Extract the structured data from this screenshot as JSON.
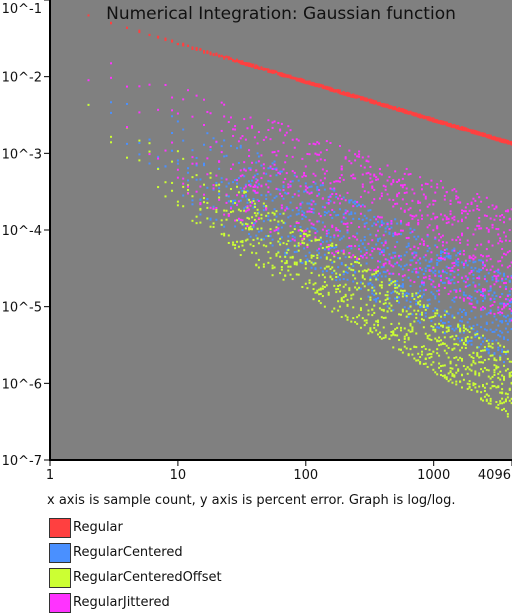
{
  "chart_data": {
    "type": "scatter",
    "title": "Numerical Integration: Gaussian function",
    "xscale": "log",
    "yscale": "log",
    "xlim": [
      1,
      4096
    ],
    "ylim": [
      1e-07,
      0.1
    ],
    "x_tick_labels": [
      "1",
      "10",
      "100",
      "1000",
      "4096"
    ],
    "x_tick_values": [
      1,
      10,
      100,
      1000,
      4096
    ],
    "y_tick_labels": [
      "10^-1",
      "10^-2",
      "10^-3",
      "10^-4",
      "10^-5",
      "10^-6",
      "10^-7"
    ],
    "y_tick_values": [
      0.1,
      0.01,
      0.001,
      0.0001,
      1e-05,
      1e-06,
      1e-07
    ],
    "plot_background": "#808080",
    "caption": "x axis is sample count, y axis is percent error. Graph is log/log.",
    "legend_placement": "bottom",
    "series": [
      {
        "name": "Regular",
        "color": "#ff4040",
        "trend": {
          "x0": 1,
          "y0": 0.09,
          "slope": -0.5
        },
        "spread_decades": 0.04
      },
      {
        "name": "RegularCentered",
        "color": "#4a90ff",
        "trend": {
          "x0": 1,
          "y0": 0.02,
          "slope": -0.8
        },
        "spread_decades": 1.2
      },
      {
        "name": "RegularCenteredOffset",
        "color": "#ccff33",
        "trend": {
          "x0": 2,
          "y0": 0.0055,
          "slope": -1.0
        },
        "spread_decades": 0.9
      },
      {
        "name": "RegularJittered",
        "color": "#ff33ff",
        "trend": {
          "x0": 1,
          "y0": 0.03,
          "slope": -0.6
        },
        "spread_decades": 1.5
      }
    ]
  }
}
